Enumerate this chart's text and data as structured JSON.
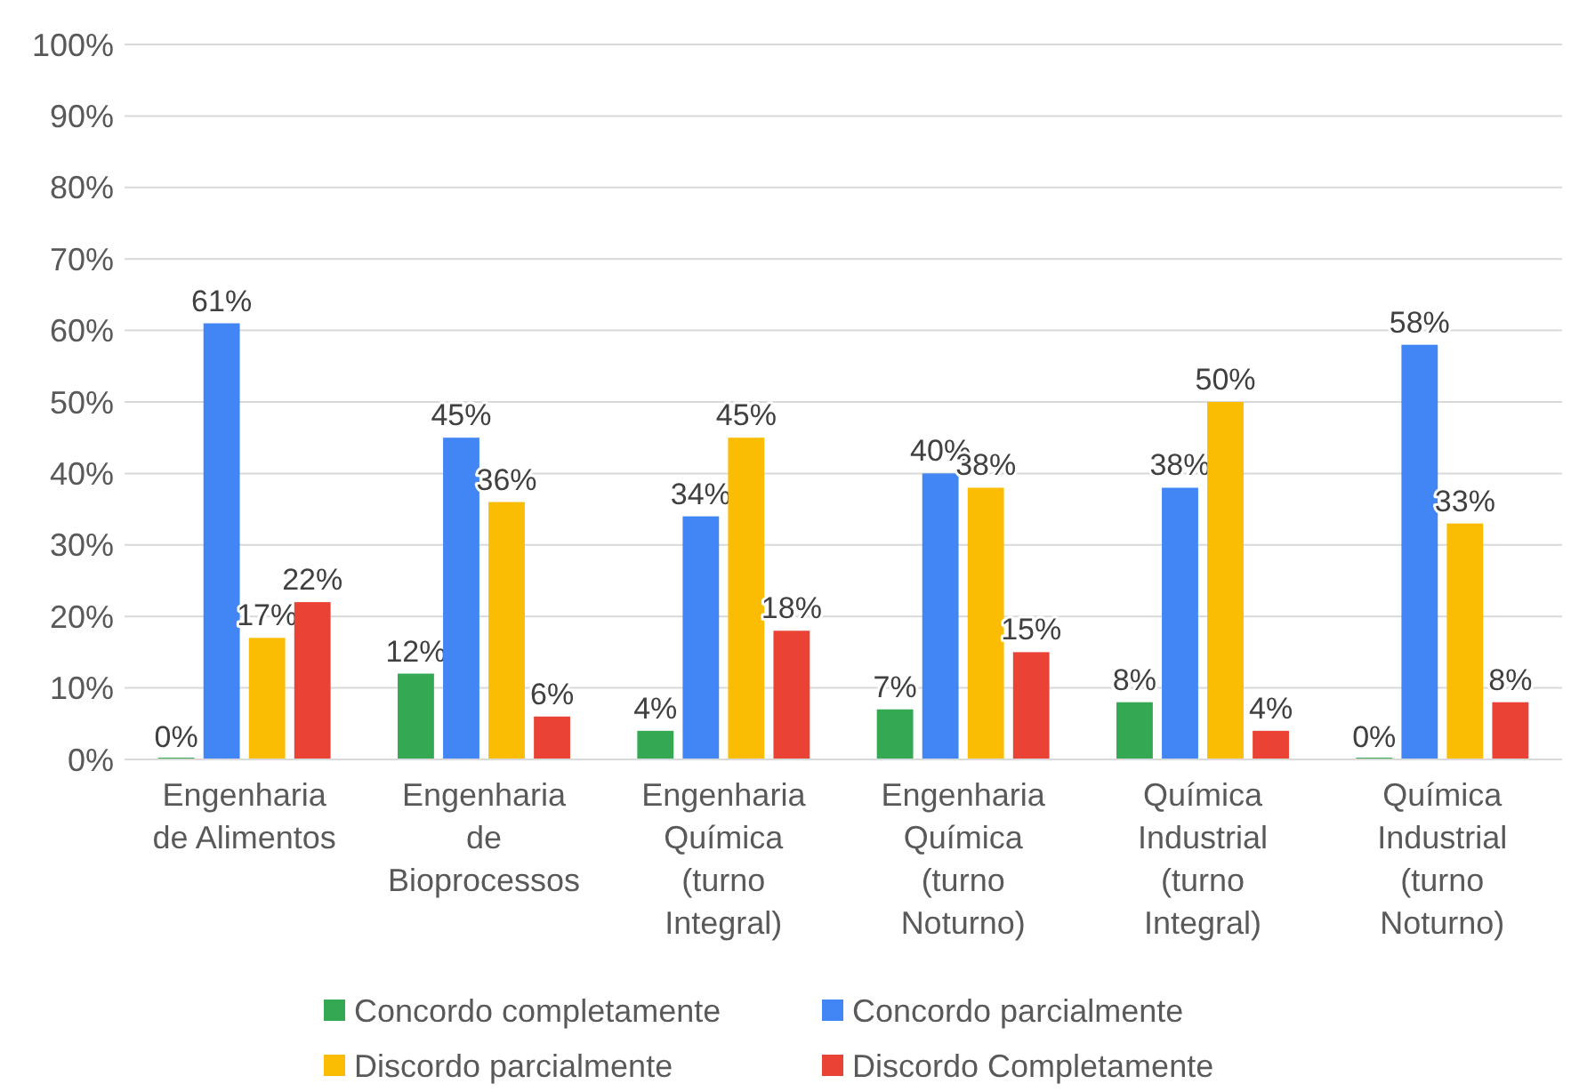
{
  "chart_data": {
    "type": "bar",
    "categories": [
      "Engenharia de Alimentos",
      "Engenharia de Bioprocessos",
      "Engenharia Química (turno Integral)",
      "Engenharia Química (turno Noturno)",
      "Química Industrial (turno Integral)",
      "Química Industrial (turno Noturno)"
    ],
    "series": [
      {
        "name": "Concordo completamente",
        "color": "#34a853",
        "values": [
          0,
          12,
          4,
          7,
          8,
          0
        ],
        "value_labels": [
          "0%",
          "12%",
          "4%",
          "7%",
          "8%",
          "0%"
        ]
      },
      {
        "name": "Concordo parcialmente",
        "color": "#4285f4",
        "values": [
          61,
          45,
          34,
          40,
          38,
          58
        ],
        "value_labels": [
          "61%",
          "45%",
          "34%",
          "40%",
          "38%",
          "58%"
        ]
      },
      {
        "name": "Discordo parcialmente",
        "color": "#fbbc04",
        "values": [
          17,
          36,
          45,
          38,
          50,
          33
        ],
        "value_labels": [
          "17%",
          "36%",
          "45%",
          "38%",
          "50%",
          "33%"
        ]
      },
      {
        "name": "Discordo Completamente",
        "color": "#ea4335",
        "values": [
          22,
          6,
          18,
          15,
          4,
          8
        ],
        "value_labels": [
          "22%",
          "6%",
          "18%",
          "15%",
          "4%",
          "8%"
        ]
      }
    ],
    "ylim": [
      0,
      100
    ],
    "yticks": [
      {
        "value": 0,
        "label": "0%"
      },
      {
        "value": 10,
        "label": "10%"
      },
      {
        "value": 20,
        "label": "20%"
      },
      {
        "value": 30,
        "label": "30%"
      },
      {
        "value": 40,
        "label": "40%"
      },
      {
        "value": 50,
        "label": "50%"
      },
      {
        "value": 60,
        "label": "60%"
      },
      {
        "value": 70,
        "label": "70%"
      },
      {
        "value": 80,
        "label": "80%"
      },
      {
        "value": 90,
        "label": "90%"
      },
      {
        "value": 100,
        "label": "100%"
      }
    ],
    "grid": "y",
    "legend": "bottom"
  }
}
